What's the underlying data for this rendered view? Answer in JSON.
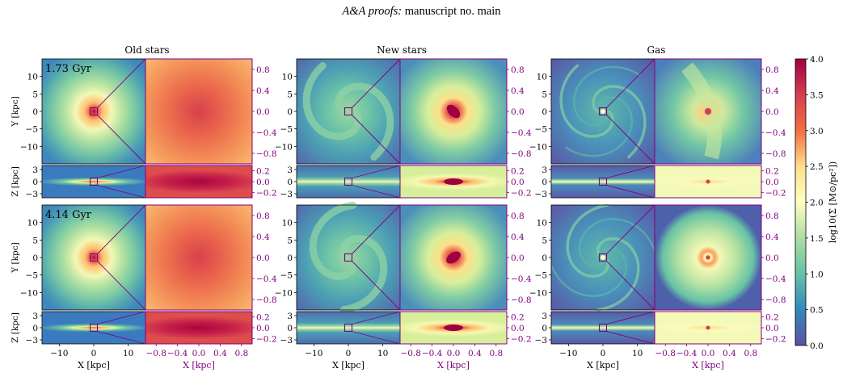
{
  "header": {
    "journal": "A&A proofs:",
    "manuscript": "manuscript no. main"
  },
  "columns": [
    {
      "title": "Old stars",
      "id": "old"
    },
    {
      "title": "New stars",
      "id": "new"
    },
    {
      "title": "Gas",
      "id": "gas"
    }
  ],
  "rows": [
    {
      "time_label": "1.73 Gyr"
    },
    {
      "time_label": "4.14 Gyr"
    }
  ],
  "axes": {
    "x_label": "X [kpc]",
    "y_label": "Y [kpc]",
    "z_label": "Z [kpc]",
    "zoom_x_label": "X [kpc]",
    "main_x_ticks": [
      "−10",
      "0",
      "10"
    ],
    "main_y_ticks": [
      "10",
      "5",
      "0",
      "−5",
      "−10"
    ],
    "main_z_ticks": [
      "3",
      "0",
      "−3"
    ],
    "zoom_x_ticks": [
      "−0.8",
      "−0.4",
      "0.0",
      "0.4",
      "0.8"
    ],
    "zoom_y_ticks": [
      "0.8",
      "0.4",
      "0.0",
      "−0.4",
      "−0.8"
    ],
    "zoom_z_ticks": [
      "0.2",
      "0.0",
      "−0.2"
    ]
  },
  "colorbar": {
    "label": "log10(Σ [M⊙/pc²])",
    "ticks": [
      "4.0",
      "3.5",
      "3.0",
      "2.5",
      "2.0",
      "1.5",
      "1.0",
      "0.5",
      "0.0"
    ],
    "min": 0.0,
    "max": 4.0
  },
  "colors": {
    "zoom_accent": "#800080",
    "cmap_low": "#5e4fa2",
    "cmap_high": "#9e0142"
  }
}
